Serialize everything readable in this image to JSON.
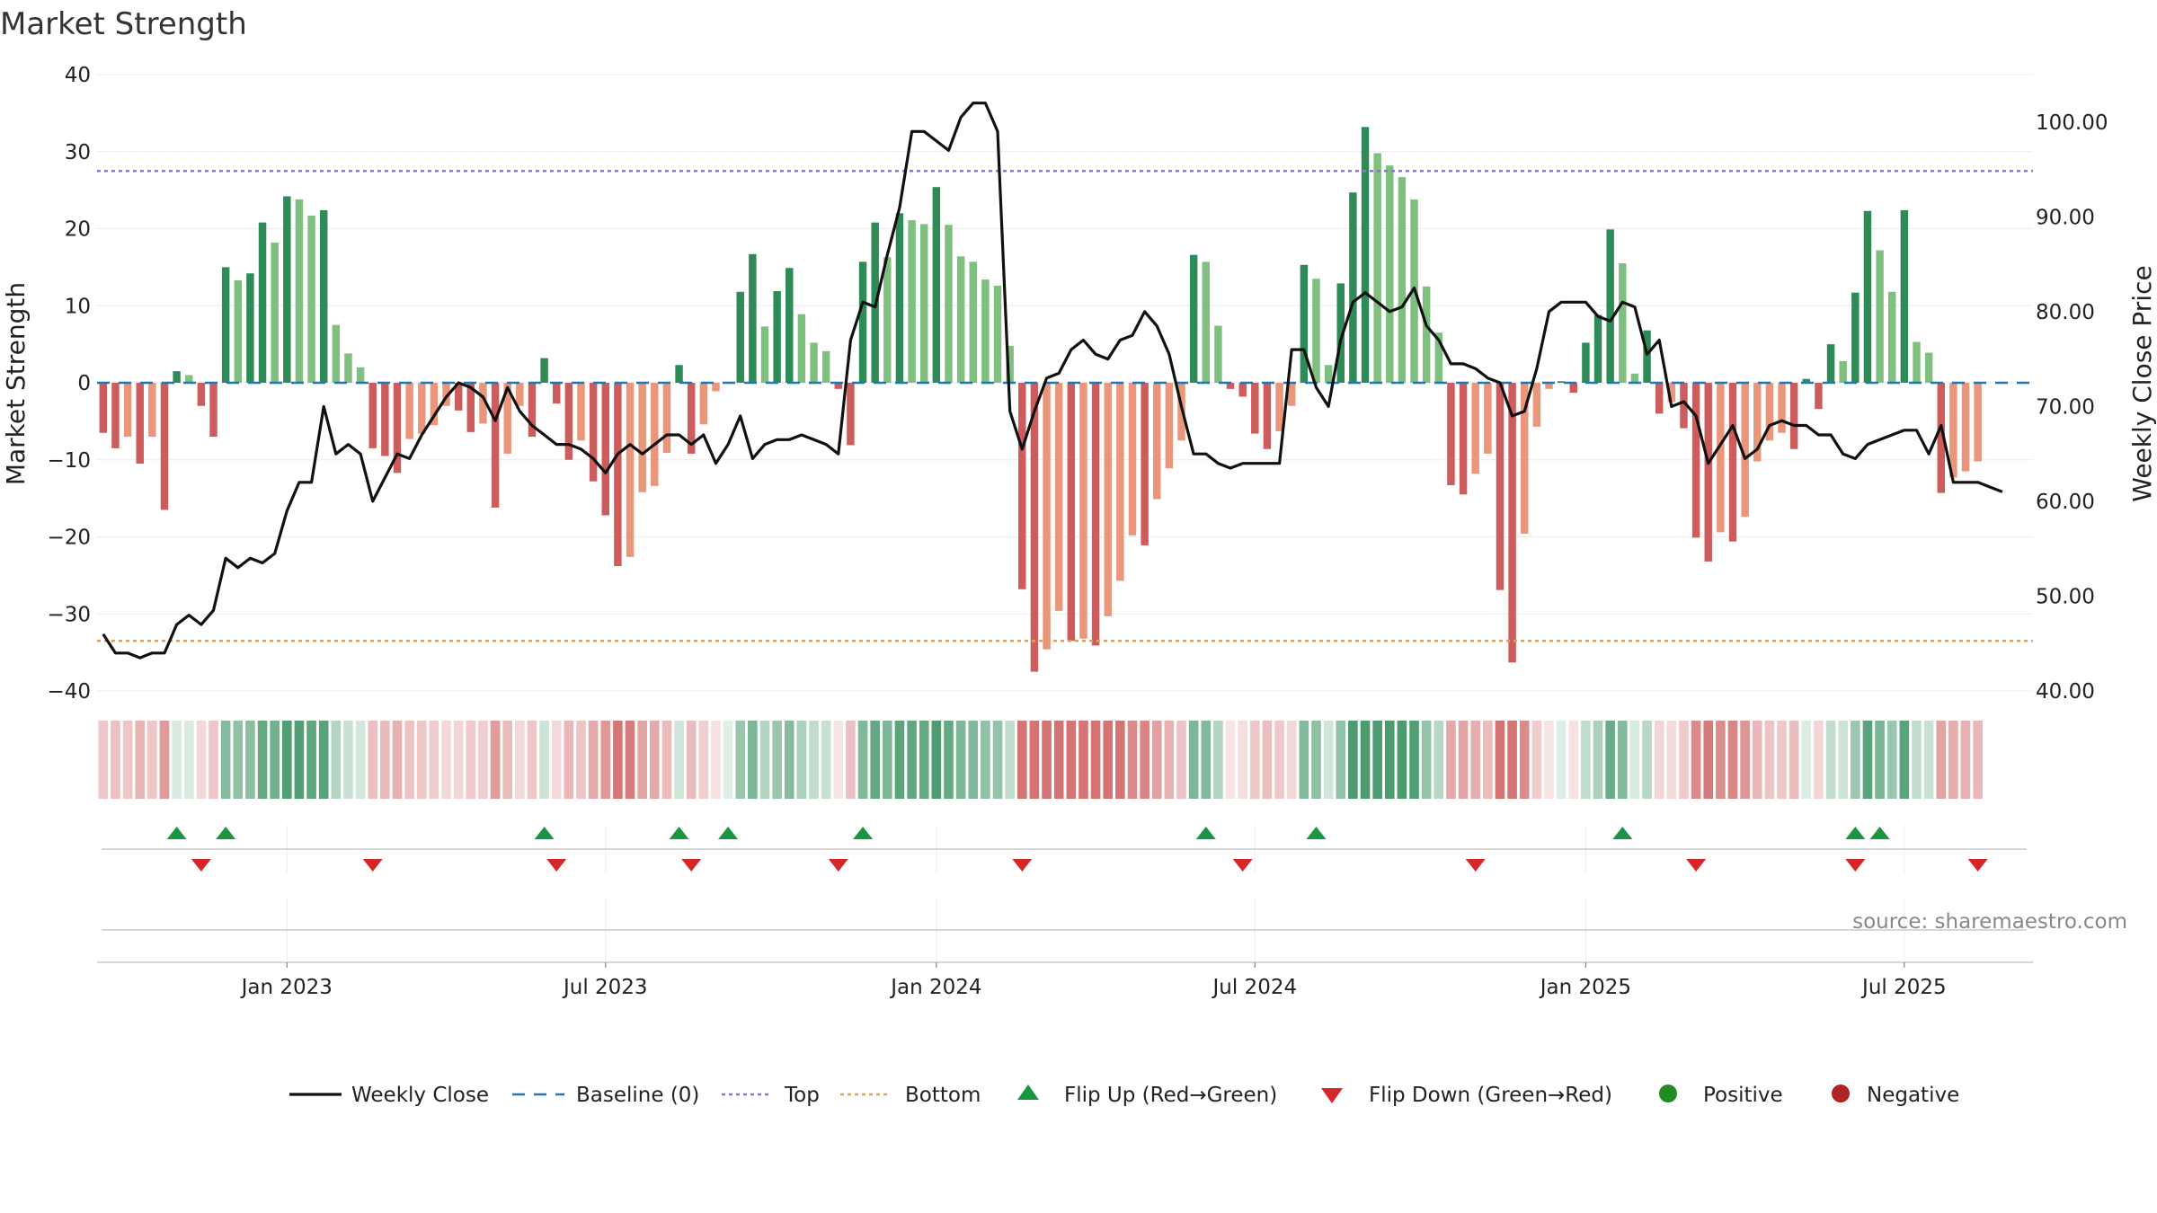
{
  "chart_data": {
    "type": "bar+line",
    "title": "Market Strength",
    "ylabel_left": "Market Strength",
    "ylabel_right": "Weekly Close Price",
    "ylim_left": [
      -40,
      40
    ],
    "ylim_right": [
      40,
      105
    ],
    "yticks_left": [
      {
        "v": 40,
        "label": "40"
      },
      {
        "v": 30,
        "label": "30"
      },
      {
        "v": 20,
        "label": "20"
      },
      {
        "v": 10,
        "label": "10"
      },
      {
        "v": 0,
        "label": "0"
      },
      {
        "v": -10,
        "label": "−10"
      },
      {
        "v": -20,
        "label": "−20"
      },
      {
        "v": -30,
        "label": "−30"
      },
      {
        "v": -40,
        "label": "−40"
      }
    ],
    "yticks_right": [
      {
        "v": 100,
        "label": "100.00"
      },
      {
        "v": 90,
        "label": "90.00"
      },
      {
        "v": 80,
        "label": "80.00"
      },
      {
        "v": 70,
        "label": "70.00"
      },
      {
        "v": 60,
        "label": "60.00"
      },
      {
        "v": 50,
        "label": "50.00"
      },
      {
        "v": 40,
        "label": "40.00"
      }
    ],
    "x_ticks": [
      {
        "week": 15,
        "label": "Jan 2023"
      },
      {
        "week": 41,
        "label": "Jul 2023"
      },
      {
        "week": 68,
        "label": "Jan 2024"
      },
      {
        "week": 94,
        "label": "Jul 2024"
      },
      {
        "week": 121,
        "label": "Jan 2025"
      },
      {
        "week": 147,
        "label": "Jul 2025"
      }
    ],
    "num_weeks": 158,
    "top_threshold": 27.5,
    "bottom_threshold": -33.5,
    "baseline": 0,
    "strength": [
      -6.5,
      -8.5,
      -7,
      -10.5,
      -7,
      -16.5,
      1.5,
      1,
      -3,
      -7,
      15,
      13.3,
      14.2,
      20.8,
      18.2,
      24.2,
      23.8,
      21.7,
      22.4,
      7.5,
      3.8,
      2,
      -8.5,
      -9.5,
      -11.7,
      -7.3,
      -6.6,
      -5.5,
      -3,
      -3.6,
      -6.4,
      -5.3,
      -16.2,
      -9.2,
      -3,
      -7,
      3.2,
      -2.7,
      -10,
      -7.5,
      -12.8,
      -17.2,
      -23.8,
      -22.6,
      -14.2,
      -13.4,
      -9.1,
      2.3,
      -9.2,
      -5.4,
      -1.1,
      0,
      11.8,
      16.7,
      7.3,
      11.9,
      14.9,
      8.9,
      5.2,
      4.1,
      -0.8,
      -8.1,
      15.7,
      20.8,
      16.3,
      22,
      21.1,
      20.6,
      25.4,
      20.5,
      16.4,
      15.7,
      13.4,
      12.6,
      4.8,
      -26.8,
      -37.5,
      -34.6,
      -29.6,
      -33.5,
      -33.2,
      -34.1,
      -30.3,
      -25.7,
      -19.8,
      -21.1,
      -15.1,
      -11.1,
      -7.5,
      16.6,
      15.7,
      7.4,
      -0.8,
      -1.8,
      -6.6,
      -8.6,
      -6.3,
      -3,
      15.3,
      13.5,
      2.3,
      12.9,
      24.7,
      33.2,
      29.8,
      28.2,
      26.7,
      23.8,
      12.5,
      6.5,
      -13.3,
      -14.5,
      -11.8,
      -9.2,
      -26.9,
      -36.3,
      -19.6,
      -5.7,
      -0.8,
      0.2,
      -1.3,
      5.2,
      8.8,
      19.9,
      15.5,
      1.2,
      6.8,
      -4,
      -2.5,
      -5.9,
      -20.1,
      -23.2,
      -19.4,
      -20.6,
      -17.4,
      -10.2,
      -7.5,
      -6.5,
      -8.6,
      0.5,
      -3.4,
      5,
      2.8,
      11.7,
      22.3,
      17.2,
      11.8,
      22.4,
      5.3,
      3.9,
      -14.3,
      -12.3,
      -11.5,
      -10.2
    ],
    "weekly_close": [
      46,
      44,
      44,
      43.5,
      44,
      44,
      47,
      48,
      47,
      48.5,
      54,
      53,
      54,
      53.5,
      54.5,
      59,
      62,
      62,
      70,
      65,
      66,
      65,
      60,
      62.5,
      65,
      64.5,
      67,
      69,
      71,
      72.5,
      72,
      71,
      68.5,
      72,
      69.5,
      68,
      67,
      66,
      66,
      65.5,
      64.5,
      63,
      65,
      66,
      65,
      66,
      67,
      67,
      66,
      67,
      64,
      66,
      69,
      64.5,
      66,
      66.5,
      66.5,
      67,
      66.5,
      66,
      65,
      77,
      81,
      80.5,
      86,
      91,
      99,
      99,
      98,
      97,
      100.5,
      102,
      102,
      99,
      69.5,
      65.5,
      69.5,
      73,
      73.5,
      76,
      77,
      75.5,
      75,
      77,
      77.5,
      80,
      78.5,
      75.5,
      70,
      65,
      65,
      64,
      63.5,
      64,
      64,
      64,
      64,
      76,
      76,
      72,
      70,
      77,
      81,
      82,
      81,
      80,
      80.5,
      82.5,
      78.5,
      77,
      74.5,
      74.5,
      74,
      73,
      72.5,
      69,
      69.5,
      74,
      80,
      81,
      81,
      81,
      79.5,
      79,
      81,
      80.5,
      75.5,
      77,
      70,
      70.5,
      69,
      64,
      66,
      68,
      64.5,
      65.5,
      68,
      68.5,
      68,
      68,
      67,
      67,
      65,
      64.5,
      66,
      66.5,
      67,
      67.5,
      67.5,
      65,
      68,
      62,
      62,
      62,
      61.5,
      61
    ],
    "flip_up_weeks": [
      6,
      10,
      36,
      47,
      51,
      62,
      90,
      99,
      124,
      143,
      145
    ],
    "flip_down_weeks": [
      8,
      22,
      37,
      48,
      60,
      75,
      93,
      112,
      130,
      143,
      153
    ],
    "colors": {
      "green_dark": "#2e8b57",
      "green_light": "#7fbf7f",
      "red_dark": "#cd5c5c",
      "red_light": "#e9967a",
      "line": "#111111",
      "top": "#9370db",
      "bottom": "#d9a060",
      "baseline": "#1f77b4",
      "flip_up": "#1a9641",
      "flip_down": "#d62728",
      "positive": "#228b22",
      "negative": "#b22222"
    },
    "legend": [
      {
        "kind": "line",
        "label": "Weekly Close"
      },
      {
        "kind": "dash",
        "label": "Baseline (0)"
      },
      {
        "kind": "dot-purple",
        "label": "Top"
      },
      {
        "kind": "dot-orange",
        "label": "Bottom"
      },
      {
        "kind": "tri-up",
        "label": "Flip Up (Red→Green)"
      },
      {
        "kind": "tri-down",
        "label": "Flip Down (Green→Red)"
      },
      {
        "kind": "circle-pos",
        "label": "Positive"
      },
      {
        "kind": "circle-neg",
        "label": "Negative"
      }
    ],
    "source": "source: sharemaestro.com"
  }
}
